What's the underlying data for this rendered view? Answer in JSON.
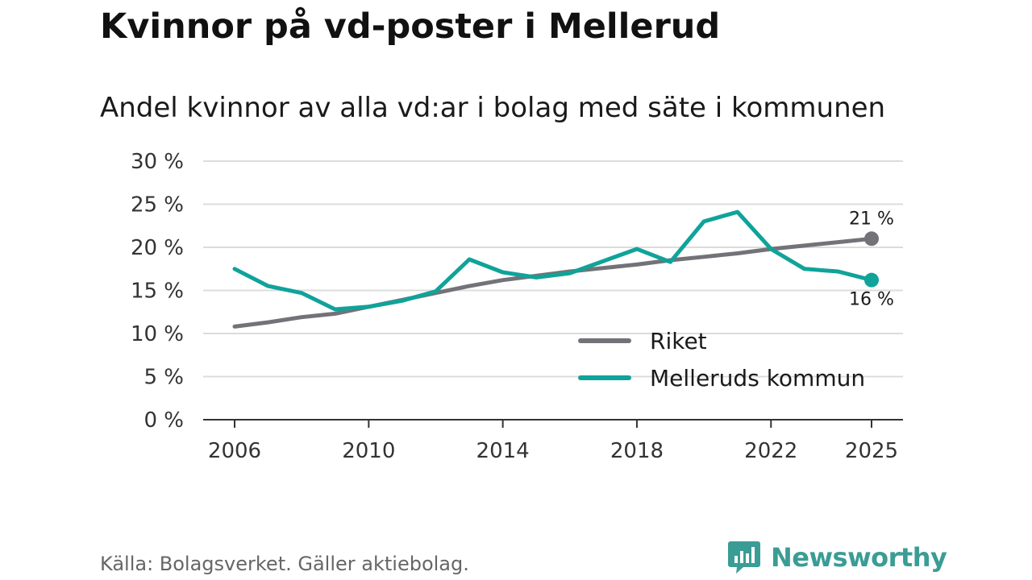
{
  "chart_data": {
    "type": "line",
    "title": "Kvinnor på vd-poster i Mellerud",
    "subtitle": "Andel kvinnor av alla vd:ar i bolag med säte i kommunen",
    "x": [
      2006,
      2007,
      2008,
      2009,
      2010,
      2011,
      2012,
      2013,
      2014,
      2015,
      2016,
      2017,
      2018,
      2019,
      2020,
      2021,
      2022,
      2023,
      2024,
      2025
    ],
    "series": [
      {
        "name": "Riket",
        "color": "#737278",
        "values": [
          10.8,
          11.3,
          11.9,
          12.3,
          13.1,
          13.9,
          14.7,
          15.5,
          16.2,
          16.7,
          17.2,
          17.6,
          18.0,
          18.5,
          18.9,
          19.3,
          19.8,
          20.2,
          20.6,
          21.0
        ]
      },
      {
        "name": "Melleruds kommun",
        "color": "#0fa39a",
        "values": [
          17.5,
          15.5,
          14.7,
          12.8,
          13.1,
          13.8,
          14.9,
          18.6,
          17.1,
          16.5,
          17.0,
          18.4,
          19.8,
          18.3,
          23.0,
          24.1,
          19.8,
          17.5,
          17.2,
          16.2
        ]
      }
    ],
    "xticks": [
      2006,
      2010,
      2014,
      2018,
      2022,
      2025
    ],
    "yticks": [
      0,
      5,
      10,
      15,
      20,
      25,
      30
    ],
    "ylim": [
      0,
      30
    ],
    "xlabel": "",
    "ylabel": "",
    "unit_suffix": " %",
    "end_labels": [
      "21 %",
      "16 %"
    ],
    "legend_position": "bottom-right",
    "grid": true
  },
  "footer": {
    "source": "Källa: Bolagsverket. Gäller aktiebolag.",
    "brand": "Newsworthy",
    "brand_color": "#3a9d95"
  }
}
